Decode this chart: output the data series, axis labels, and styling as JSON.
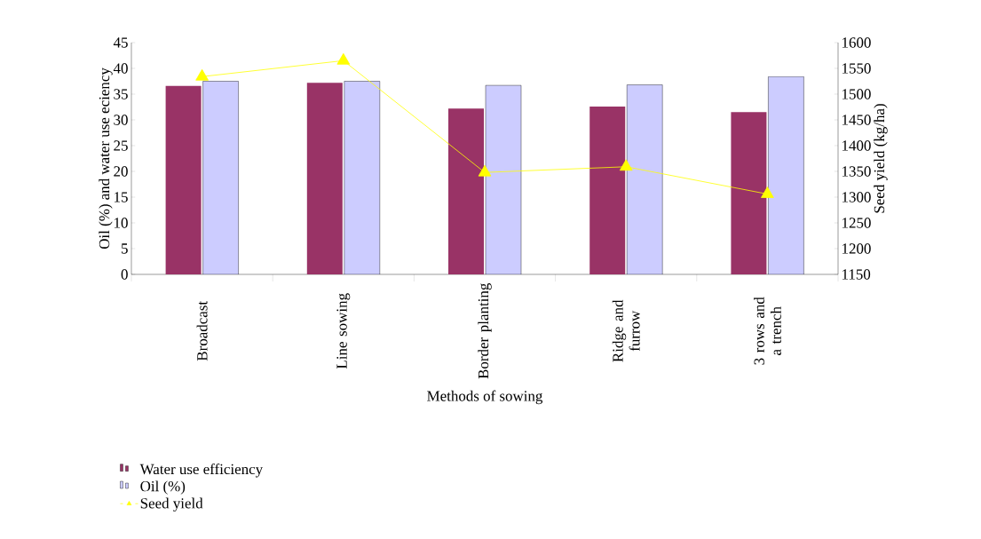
{
  "chart_data": {
    "type": "bar",
    "xlabel": "Methods of sowing",
    "ylabel": "Oil (%) and water use eciency",
    "y2label": "Seed yield (kg/ha)",
    "categories": [
      "Broadcast",
      "Line sowing",
      "Border planting",
      "Ridge and furrow",
      "3 rows and a trench"
    ],
    "series": [
      {
        "name": "Water use efficiency",
        "color": "#993366",
        "values": [
          36.6,
          37.2,
          32.2,
          32.6,
          31.5
        ]
      },
      {
        "name": "Oil (%)",
        "color": "#ccccff",
        "values": [
          37.5,
          37.5,
          36.7,
          36.8,
          38.4
        ]
      },
      {
        "name": "Seed yield",
        "type": "line",
        "axis": "y2",
        "color": "#ffff00",
        "marker": "triangle",
        "values": [
          1534,
          1565,
          1348,
          1359,
          1306
        ]
      }
    ],
    "ylim": [
      0,
      45
    ],
    "yticks": [
      0,
      5,
      10,
      15,
      20,
      25,
      30,
      35,
      40,
      45
    ],
    "y2lim": [
      1150,
      1600
    ],
    "y2ticks": [
      1150,
      1200,
      1250,
      1300,
      1350,
      1400,
      1450,
      1500,
      1550,
      1600
    ],
    "legend": "bottom",
    "grid": false
  }
}
